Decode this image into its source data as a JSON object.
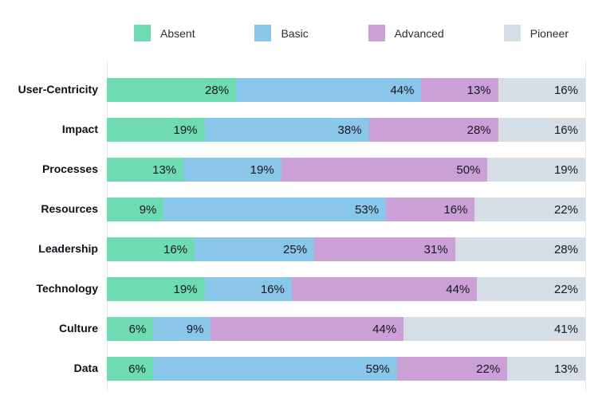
{
  "chart_data": {
    "type": "bar",
    "orientation": "horizontal",
    "stacked": true,
    "normalized_to_100": true,
    "unit": "%",
    "title": "",
    "xlabel": "",
    "ylabel": "",
    "xlim": [
      0,
      100
    ],
    "grid": "plot-edges-only",
    "legend_position": "top",
    "value_label_suffix": "%",
    "categories": [
      "User-Centricity",
      "Impact",
      "Processes",
      "Resources",
      "Leadership",
      "Technology",
      "Culture",
      "Data"
    ],
    "series": [
      {
        "name": "Absent",
        "color": "#6EDBB2",
        "values": [
          28,
          19,
          13,
          9,
          16,
          19,
          6,
          6
        ]
      },
      {
        "name": "Basic",
        "color": "#8AC6EA",
        "values": [
          44,
          38,
          19,
          53,
          25,
          16,
          9,
          59
        ]
      },
      {
        "name": "Advanced",
        "color": "#CAA0D7",
        "values": [
          13,
          28,
          50,
          16,
          31,
          44,
          44,
          22
        ]
      },
      {
        "name": "Pioneer",
        "color": "#D5DDE5",
        "values": [
          16,
          16,
          19,
          22,
          28,
          22,
          41,
          13
        ]
      }
    ]
  },
  "colors": {
    "background": "#FFFFFF",
    "axis_line": "#E5E7EA",
    "value_text": "#17171F",
    "category_text": "#10101A",
    "legend_text": "#2E2E38"
  }
}
